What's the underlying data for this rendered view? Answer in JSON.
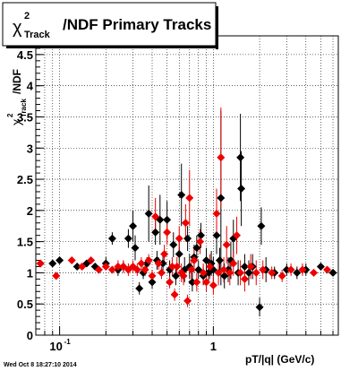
{
  "title_box": {
    "chi": "χ",
    "sup": "2",
    "sub": "Track",
    "rest": "/NDF  Primary Tracks"
  },
  "footer_timestamp": "Wed Oct  8 18:27:10 2014",
  "chart_data": {
    "type": "scatter",
    "xlabel": "pT/|q| (GeV/c)",
    "ylabel": {
      "chi": "χ",
      "sup": "2",
      "sub": "Track",
      "rest": "/NDF"
    },
    "xscale": "log",
    "xlim": [
      0.07,
      6.5
    ],
    "ylim": [
      0,
      4.8
    ],
    "x_ticks": [
      {
        "value": 0.1,
        "label": "10",
        "exp": "-1"
      },
      {
        "value": 1,
        "label": "1",
        "exp": ""
      }
    ],
    "y_ticks": [
      "0",
      "0.5",
      "1",
      "1.5",
      "2",
      "2.5",
      "3",
      "3.5",
      "4",
      "4.5"
    ],
    "grid": true,
    "series": [
      {
        "color": "#000000",
        "points": [
          {
            "x": 0.075,
            "y": 1.15,
            "e": 0.05
          },
          {
            "x": 0.09,
            "y": 1.15,
            "e": 0.05
          },
          {
            "x": 0.1,
            "y": 1.2,
            "e": 0.05
          },
          {
            "x": 0.13,
            "y": 1.1,
            "e": 0.05
          },
          {
            "x": 0.15,
            "y": 1.15,
            "e": 0.05
          },
          {
            "x": 0.17,
            "y": 1.1,
            "e": 0.05
          },
          {
            "x": 0.2,
            "y": 1.15,
            "e": 0.1
          },
          {
            "x": 0.22,
            "y": 1.55,
            "e": 0.1
          },
          {
            "x": 0.24,
            "y": 1.05,
            "e": 0.1
          },
          {
            "x": 0.26,
            "y": 1.1,
            "e": 0.1
          },
          {
            "x": 0.28,
            "y": 1.55,
            "e": 0.15
          },
          {
            "x": 0.3,
            "y": 1.75,
            "e": 0.25
          },
          {
            "x": 0.31,
            "y": 1.4,
            "e": 0.2
          },
          {
            "x": 0.33,
            "y": 0.75,
            "e": 0.1
          },
          {
            "x": 0.35,
            "y": 1.0,
            "e": 0.1
          },
          {
            "x": 0.37,
            "y": 1.15,
            "e": 0.1
          },
          {
            "x": 0.38,
            "y": 1.95,
            "e": 0.45
          },
          {
            "x": 0.4,
            "y": 0.85,
            "e": 0.1
          },
          {
            "x": 0.42,
            "y": 1.65,
            "e": 0.2
          },
          {
            "x": 0.43,
            "y": 1.2,
            "e": 0.15
          },
          {
            "x": 0.45,
            "y": 1.85,
            "e": 0.4
          },
          {
            "x": 0.47,
            "y": 1.15,
            "e": 0.15
          },
          {
            "x": 0.5,
            "y": 1.85,
            "e": 0.3
          },
          {
            "x": 0.52,
            "y": 1.05,
            "e": 0.15
          },
          {
            "x": 0.55,
            "y": 1.45,
            "e": 0.2
          },
          {
            "x": 0.57,
            "y": 0.95,
            "e": 0.15
          },
          {
            "x": 0.6,
            "y": 1.3,
            "e": 0.2
          },
          {
            "x": 0.62,
            "y": 2.25,
            "e": 0.5
          },
          {
            "x": 0.65,
            "y": 1.05,
            "e": 0.2
          },
          {
            "x": 0.68,
            "y": 1.55,
            "e": 0.2
          },
          {
            "x": 0.7,
            "y": 1.1,
            "e": 0.2
          },
          {
            "x": 0.73,
            "y": 0.85,
            "e": 0.15
          },
          {
            "x": 0.75,
            "y": 1.25,
            "e": 0.2
          },
          {
            "x": 0.78,
            "y": 1.4,
            "e": 0.2
          },
          {
            "x": 0.8,
            "y": 1.05,
            "e": 0.15
          },
          {
            "x": 0.83,
            "y": 1.6,
            "e": 0.2
          },
          {
            "x": 0.86,
            "y": 0.95,
            "e": 0.15
          },
          {
            "x": 0.9,
            "y": 1.2,
            "e": 0.2
          },
          {
            "x": 0.93,
            "y": 1.0,
            "e": 0.15
          },
          {
            "x": 0.97,
            "y": 1.15,
            "e": 0.2
          },
          {
            "x": 1.0,
            "y": 1.05,
            "e": 0.2
          },
          {
            "x": 1.05,
            "y": 1.6,
            "e": 0.3
          },
          {
            "x": 1.1,
            "y": 1.2,
            "e": 0.2
          },
          {
            "x": 1.12,
            "y": 2.2,
            "e": 1.4
          },
          {
            "x": 1.18,
            "y": 0.95,
            "e": 0.2
          },
          {
            "x": 1.25,
            "y": 1.05,
            "e": 0.2
          },
          {
            "x": 1.3,
            "y": 1.2,
            "e": 0.3
          },
          {
            "x": 1.35,
            "y": 1.55,
            "e": 0.3
          },
          {
            "x": 1.45,
            "y": 1.0,
            "e": 0.2
          },
          {
            "x": 1.5,
            "y": 2.85,
            "e": 0.7
          },
          {
            "x": 1.52,
            "y": 2.35,
            "e": 0.6
          },
          {
            "x": 1.6,
            "y": 1.1,
            "e": 0.2
          },
          {
            "x": 1.7,
            "y": 1.0,
            "e": 0.2
          },
          {
            "x": 1.8,
            "y": 1.1,
            "e": 0.2
          },
          {
            "x": 2.0,
            "y": 0.45,
            "e": 0.15
          },
          {
            "x": 2.05,
            "y": 1.75,
            "e": 0.3
          },
          {
            "x": 2.2,
            "y": 1.05,
            "e": 0.2
          },
          {
            "x": 2.5,
            "y": 1.0,
            "e": 0.1
          },
          {
            "x": 3.0,
            "y": 1.05,
            "e": 0.1
          },
          {
            "x": 3.5,
            "y": 1.0,
            "e": 0.1
          },
          {
            "x": 4.0,
            "y": 1.05,
            "e": 0.1
          },
          {
            "x": 5.0,
            "y": 1.1,
            "e": 0.05
          },
          {
            "x": 6.0,
            "y": 1.0,
            "e": 0.05
          }
        ]
      },
      {
        "color": "#ee0000",
        "points": [
          {
            "x": 0.075,
            "y": 1.15,
            "e": 0.05
          },
          {
            "x": 0.095,
            "y": 0.95,
            "e": 0.05
          },
          {
            "x": 0.12,
            "y": 1.2,
            "e": 0.05
          },
          {
            "x": 0.14,
            "y": 1.1,
            "e": 0.05
          },
          {
            "x": 0.16,
            "y": 1.2,
            "e": 0.05
          },
          {
            "x": 0.18,
            "y": 1.05,
            "e": 0.05
          },
          {
            "x": 0.2,
            "y": 1.1,
            "e": 0.05
          },
          {
            "x": 0.22,
            "y": 1.05,
            "e": 0.05
          },
          {
            "x": 0.24,
            "y": 1.1,
            "e": 0.1
          },
          {
            "x": 0.26,
            "y": 1.1,
            "e": 0.1
          },
          {
            "x": 0.28,
            "y": 1.05,
            "e": 0.1
          },
          {
            "x": 0.3,
            "y": 1.1,
            "e": 0.1
          },
          {
            "x": 0.32,
            "y": 1.05,
            "e": 0.1
          },
          {
            "x": 0.34,
            "y": 1.15,
            "e": 0.1
          },
          {
            "x": 0.36,
            "y": 1.05,
            "e": 0.1
          },
          {
            "x": 0.38,
            "y": 1.2,
            "e": 0.1
          },
          {
            "x": 0.4,
            "y": 0.95,
            "e": 0.1
          },
          {
            "x": 0.42,
            "y": 1.9,
            "e": 0.3
          },
          {
            "x": 0.44,
            "y": 1.15,
            "e": 0.1
          },
          {
            "x": 0.46,
            "y": 1.0,
            "e": 0.1
          },
          {
            "x": 0.48,
            "y": 1.3,
            "e": 0.15
          },
          {
            "x": 0.5,
            "y": 1.65,
            "e": 0.2
          },
          {
            "x": 0.52,
            "y": 0.85,
            "e": 0.1
          },
          {
            "x": 0.54,
            "y": 1.1,
            "e": 0.15
          },
          {
            "x": 0.56,
            "y": 0.65,
            "e": 0.1
          },
          {
            "x": 0.58,
            "y": 1.1,
            "e": 0.15
          },
          {
            "x": 0.6,
            "y": 1.55,
            "e": 0.2
          },
          {
            "x": 0.62,
            "y": 1.0,
            "e": 0.15
          },
          {
            "x": 0.64,
            "y": 0.95,
            "e": 0.15
          },
          {
            "x": 0.66,
            "y": 1.8,
            "e": 0.3
          },
          {
            "x": 0.68,
            "y": 0.55,
            "e": 0.1
          },
          {
            "x": 0.7,
            "y": 2.2,
            "e": 0.45
          },
          {
            "x": 0.72,
            "y": 1.05,
            "e": 0.15
          },
          {
            "x": 0.75,
            "y": 1.2,
            "e": 0.2
          },
          {
            "x": 0.78,
            "y": 0.85,
            "e": 0.15
          },
          {
            "x": 0.82,
            "y": 1.5,
            "e": 0.2
          },
          {
            "x": 0.86,
            "y": 1.0,
            "e": 0.15
          },
          {
            "x": 0.9,
            "y": 0.85,
            "e": 0.15
          },
          {
            "x": 0.95,
            "y": 1.1,
            "e": 0.2
          },
          {
            "x": 1.0,
            "y": 0.8,
            "e": 0.15
          },
          {
            "x": 1.05,
            "y": 1.95,
            "e": 0.4
          },
          {
            "x": 1.08,
            "y": 1.0,
            "e": 0.2
          },
          {
            "x": 1.12,
            "y": 2.85,
            "e": 0.8
          },
          {
            "x": 1.17,
            "y": 1.05,
            "e": 0.2
          },
          {
            "x": 1.22,
            "y": 1.45,
            "e": 0.3
          },
          {
            "x": 1.28,
            "y": 1.0,
            "e": 0.2
          },
          {
            "x": 1.35,
            "y": 1.15,
            "e": 0.2
          },
          {
            "x": 1.42,
            "y": 1.6,
            "e": 0.3
          },
          {
            "x": 1.5,
            "y": 1.0,
            "e": 0.2
          },
          {
            "x": 1.6,
            "y": 0.9,
            "e": 0.2
          },
          {
            "x": 1.75,
            "y": 1.1,
            "e": 0.2
          },
          {
            "x": 1.9,
            "y": 1.0,
            "e": 0.2
          },
          {
            "x": 2.1,
            "y": 1.05,
            "e": 0.15
          },
          {
            "x": 2.4,
            "y": 1.0,
            "e": 0.1
          },
          {
            "x": 2.8,
            "y": 0.95,
            "e": 0.1
          },
          {
            "x": 3.2,
            "y": 1.05,
            "e": 0.1
          },
          {
            "x": 3.8,
            "y": 1.05,
            "e": 0.1
          },
          {
            "x": 4.5,
            "y": 1.0,
            "e": 0.05
          },
          {
            "x": 5.5,
            "y": 1.05,
            "e": 0.05
          }
        ]
      }
    ]
  }
}
